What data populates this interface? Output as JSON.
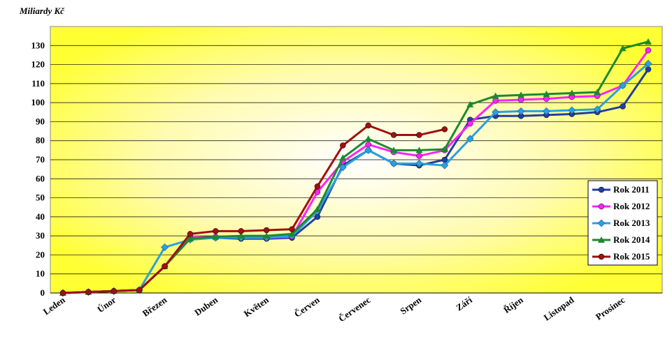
{
  "chart_data": {
    "type": "line",
    "ylabel": "Miliardy Kč",
    "ylim": [
      0,
      140
    ],
    "yticks": [
      0,
      10,
      20,
      30,
      40,
      50,
      60,
      70,
      80,
      90,
      100,
      110,
      120,
      130
    ],
    "grid": true,
    "legend_position": "right",
    "month_labels": [
      "Leden",
      "Únor",
      "Březen",
      "Duben",
      "Květen",
      "Červen",
      "Červenec",
      "Srpen",
      "Září",
      "Říjen",
      "Listopad",
      "Prosinec"
    ],
    "series": [
      {
        "name": "Rok 2011",
        "color": "#1f3fa3",
        "marker": "circle",
        "values": [
          0,
          0.5,
          1,
          1.5,
          14,
          29,
          29,
          28.5,
          28.5,
          29,
          40,
          67,
          75,
          68,
          67,
          70,
          91,
          93,
          93,
          93.5,
          94,
          95,
          98,
          117.5
        ]
      },
      {
        "name": "Rok 2012",
        "color": "#ff22ff",
        "marker": "circle",
        "values": [
          0,
          0.5,
          1,
          1.5,
          14,
          29,
          29.5,
          29,
          29,
          29.5,
          53,
          69,
          78,
          74,
          72,
          75,
          89,
          101,
          101.5,
          102,
          103,
          103.5,
          109,
          127.5
        ]
      },
      {
        "name": "Rok 2013",
        "color": "#2aa0e0",
        "marker": "diamond",
        "values": [
          0,
          0.5,
          1,
          1.5,
          24,
          28,
          29,
          29,
          29,
          30,
          43,
          66,
          75,
          68,
          68,
          67,
          81,
          95,
          95.5,
          95.5,
          96,
          96.5,
          109,
          120.5
        ]
      },
      {
        "name": "Rok 2014",
        "color": "#1b8a2e",
        "marker": "triangle",
        "values": [
          0,
          0.5,
          1,
          1.5,
          14,
          28.5,
          29.5,
          30,
          30,
          31,
          44,
          71,
          81,
          75,
          75,
          75.5,
          99,
          103.5,
          104,
          104.5,
          105,
          105.5,
          128.5,
          132
        ]
      },
      {
        "name": "Rok 2015",
        "color": "#a01010",
        "marker": "circle",
        "values": [
          0,
          0.5,
          1,
          1.5,
          14,
          31,
          32.5,
          32.5,
          33,
          33.5,
          56,
          77.5,
          88,
          83,
          83,
          86
        ]
      }
    ]
  }
}
